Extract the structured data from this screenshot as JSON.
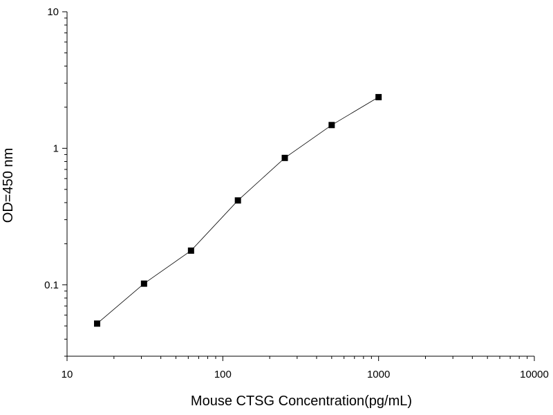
{
  "chart_data": {
    "type": "scatter",
    "title": "",
    "xlabel": "Mouse CTSG Concentration(pg/mL)",
    "ylabel": "OD=450 nm",
    "xscale": "log",
    "yscale": "log",
    "xlim": [
      10,
      10000
    ],
    "ylim": [
      0.03,
      10
    ],
    "x_ticks": [
      {
        "value": 10,
        "label": "10"
      },
      {
        "value": 100,
        "label": "100"
      },
      {
        "value": 1000,
        "label": "1000"
      },
      {
        "value": 10000,
        "label": "10000"
      }
    ],
    "y_ticks": [
      {
        "value": 0.1,
        "label": "0.1"
      },
      {
        "value": 1,
        "label": "1"
      },
      {
        "value": 10,
        "label": "10"
      }
    ],
    "grid": false,
    "legend": "none",
    "marker": "square",
    "line_connects_points": true,
    "series": [
      {
        "x": [
          15.6,
          31.2,
          62.5,
          125,
          250,
          500,
          1000
        ],
        "y": [
          0.052,
          0.102,
          0.178,
          0.415,
          0.85,
          1.48,
          2.37
        ]
      }
    ],
    "colors": {
      "marker": "#000000",
      "line": "#000000",
      "axis": "#000000"
    }
  }
}
